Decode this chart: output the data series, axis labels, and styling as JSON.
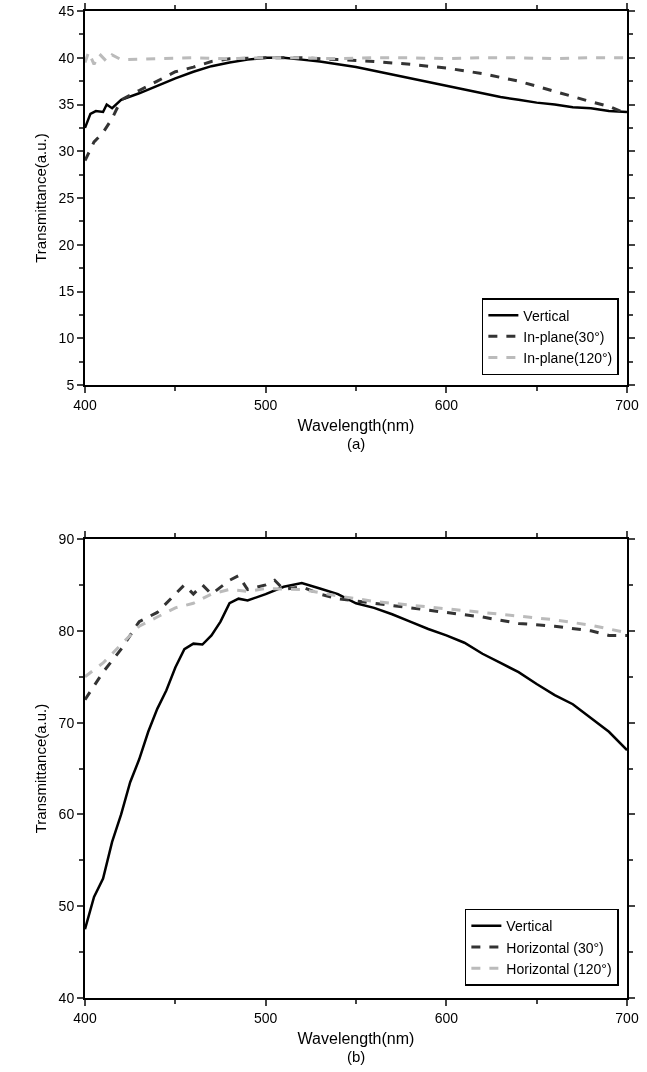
{
  "chart_data": [
    {
      "type": "line",
      "xlabel": "Wavelength(nm)",
      "ylabel": "Transmittance(a.u.)",
      "annotations": [
        "(a)"
      ],
      "xlim": [
        400,
        700
      ],
      "xticks": [
        400,
        500,
        600,
        700
      ],
      "ylim": [
        5,
        45
      ],
      "yticks": [
        5,
        10,
        15,
        20,
        25,
        30,
        35,
        40,
        45
      ],
      "legend": "bottom right",
      "marker": "none",
      "series": [
        {
          "name": "Vertical",
          "color": "#000000",
          "line_style": "solid",
          "x": [
            400,
            403,
            406,
            410,
            412,
            415,
            420,
            430,
            440,
            450,
            460,
            470,
            480,
            490,
            500,
            510,
            520,
            530,
            540,
            550,
            560,
            570,
            580,
            590,
            600,
            610,
            620,
            630,
            640,
            650,
            660,
            670,
            680,
            690,
            700
          ],
          "values": [
            32.5,
            34,
            34.3,
            34.2,
            35,
            34.6,
            35.5,
            36.2,
            37,
            37.8,
            38.5,
            39.1,
            39.5,
            39.8,
            40,
            40,
            39.8,
            39.6,
            39.3,
            39,
            38.6,
            38.2,
            37.8,
            37.4,
            37,
            36.6,
            36.2,
            35.8,
            35.5,
            35.2,
            35,
            34.7,
            34.6,
            34.3,
            34.2
          ]
        },
        {
          "name": "In-plane(30°)",
          "color": "#333333",
          "line_style": "dashed",
          "x": [
            400,
            405,
            410,
            415,
            420,
            430,
            440,
            450,
            460,
            470,
            480,
            500,
            520,
            540,
            560,
            580,
            600,
            620,
            640,
            660,
            680,
            690,
            700
          ],
          "values": [
            29,
            31,
            32,
            33.5,
            35.5,
            36.5,
            37.5,
            38.5,
            39,
            39.6,
            39.9,
            40,
            40,
            39.8,
            39.6,
            39.3,
            38.9,
            38.3,
            37.5,
            36.4,
            35.3,
            34.8,
            34
          ]
        },
        {
          "name": "In-plane(120°)",
          "color": "#bbbbbb",
          "line_style": "dashed",
          "x": [
            400,
            402,
            405,
            408,
            412,
            415,
            420,
            440,
            460,
            480,
            500,
            520,
            540,
            560,
            580,
            600,
            620,
            640,
            660,
            680,
            700
          ],
          "values": [
            39.5,
            40.6,
            39.3,
            40.4,
            39.6,
            40.3,
            39.8,
            39.9,
            40,
            39.9,
            40,
            40,
            39.9,
            40,
            40,
            39.9,
            40,
            40,
            39.9,
            40,
            40
          ]
        }
      ]
    },
    {
      "type": "line",
      "xlabel": "Wavelength(nm)",
      "ylabel": "Transmittance(a.u.)",
      "annotations": [
        "(b)"
      ],
      "xlim": [
        400,
        700
      ],
      "xticks": [
        400,
        500,
        600,
        700
      ],
      "ylim": [
        40,
        90
      ],
      "yticks": [
        40,
        50,
        60,
        70,
        80,
        90
      ],
      "legend": "bottom right",
      "marker": "none",
      "series": [
        {
          "name": "Vertical",
          "color": "#000000",
          "line_style": "solid",
          "x": [
            400,
            405,
            410,
            415,
            420,
            425,
            430,
            435,
            440,
            445,
            450,
            455,
            460,
            465,
            470,
            475,
            480,
            485,
            490,
            500,
            510,
            520,
            530,
            540,
            550,
            560,
            570,
            580,
            590,
            600,
            610,
            620,
            630,
            640,
            650,
            660,
            670,
            680,
            690,
            700
          ],
          "values": [
            47.5,
            51,
            53,
            57,
            60,
            63.5,
            66,
            69,
            71.5,
            73.5,
            76,
            78,
            78.6,
            78.5,
            79.5,
            81,
            83,
            83.5,
            83.3,
            84,
            84.8,
            85.2,
            84.6,
            84,
            83,
            82.5,
            81.8,
            81,
            80.2,
            79.5,
            78.7,
            77.5,
            76.5,
            75.5,
            74.2,
            73,
            72,
            70.5,
            69,
            67
          ]
        },
        {
          "name": "Horizontal (30°)",
          "color": "#333333",
          "line_style": "dashed",
          "x": [
            400,
            405,
            410,
            420,
            430,
            440,
            450,
            455,
            460,
            465,
            470,
            480,
            485,
            490,
            500,
            505,
            510,
            520,
            530,
            540,
            560,
            580,
            600,
            620,
            640,
            660,
            680,
            690,
            700
          ],
          "values": [
            72.5,
            74,
            75.5,
            78,
            81,
            82,
            84,
            85,
            84,
            85,
            84,
            85.5,
            86,
            84.5,
            85,
            85.5,
            84.5,
            84.8,
            84,
            83.5,
            83,
            82.5,
            82,
            81.5,
            80.8,
            80.5,
            80,
            79.5,
            79.5
          ]
        },
        {
          "name": "Horizontal (120°)",
          "color": "#bbbbbb",
          "line_style": "dashed",
          "x": [
            400,
            410,
            420,
            430,
            440,
            450,
            460,
            470,
            480,
            490,
            500,
            520,
            540,
            560,
            580,
            600,
            620,
            640,
            660,
            680,
            700
          ],
          "values": [
            75,
            76.5,
            78.5,
            80.5,
            81.5,
            82.5,
            83,
            84,
            84.5,
            84.3,
            84.6,
            84.5,
            83.8,
            83.2,
            82.8,
            82.4,
            82,
            81.6,
            81.2,
            80.6,
            79.8
          ]
        }
      ]
    }
  ]
}
